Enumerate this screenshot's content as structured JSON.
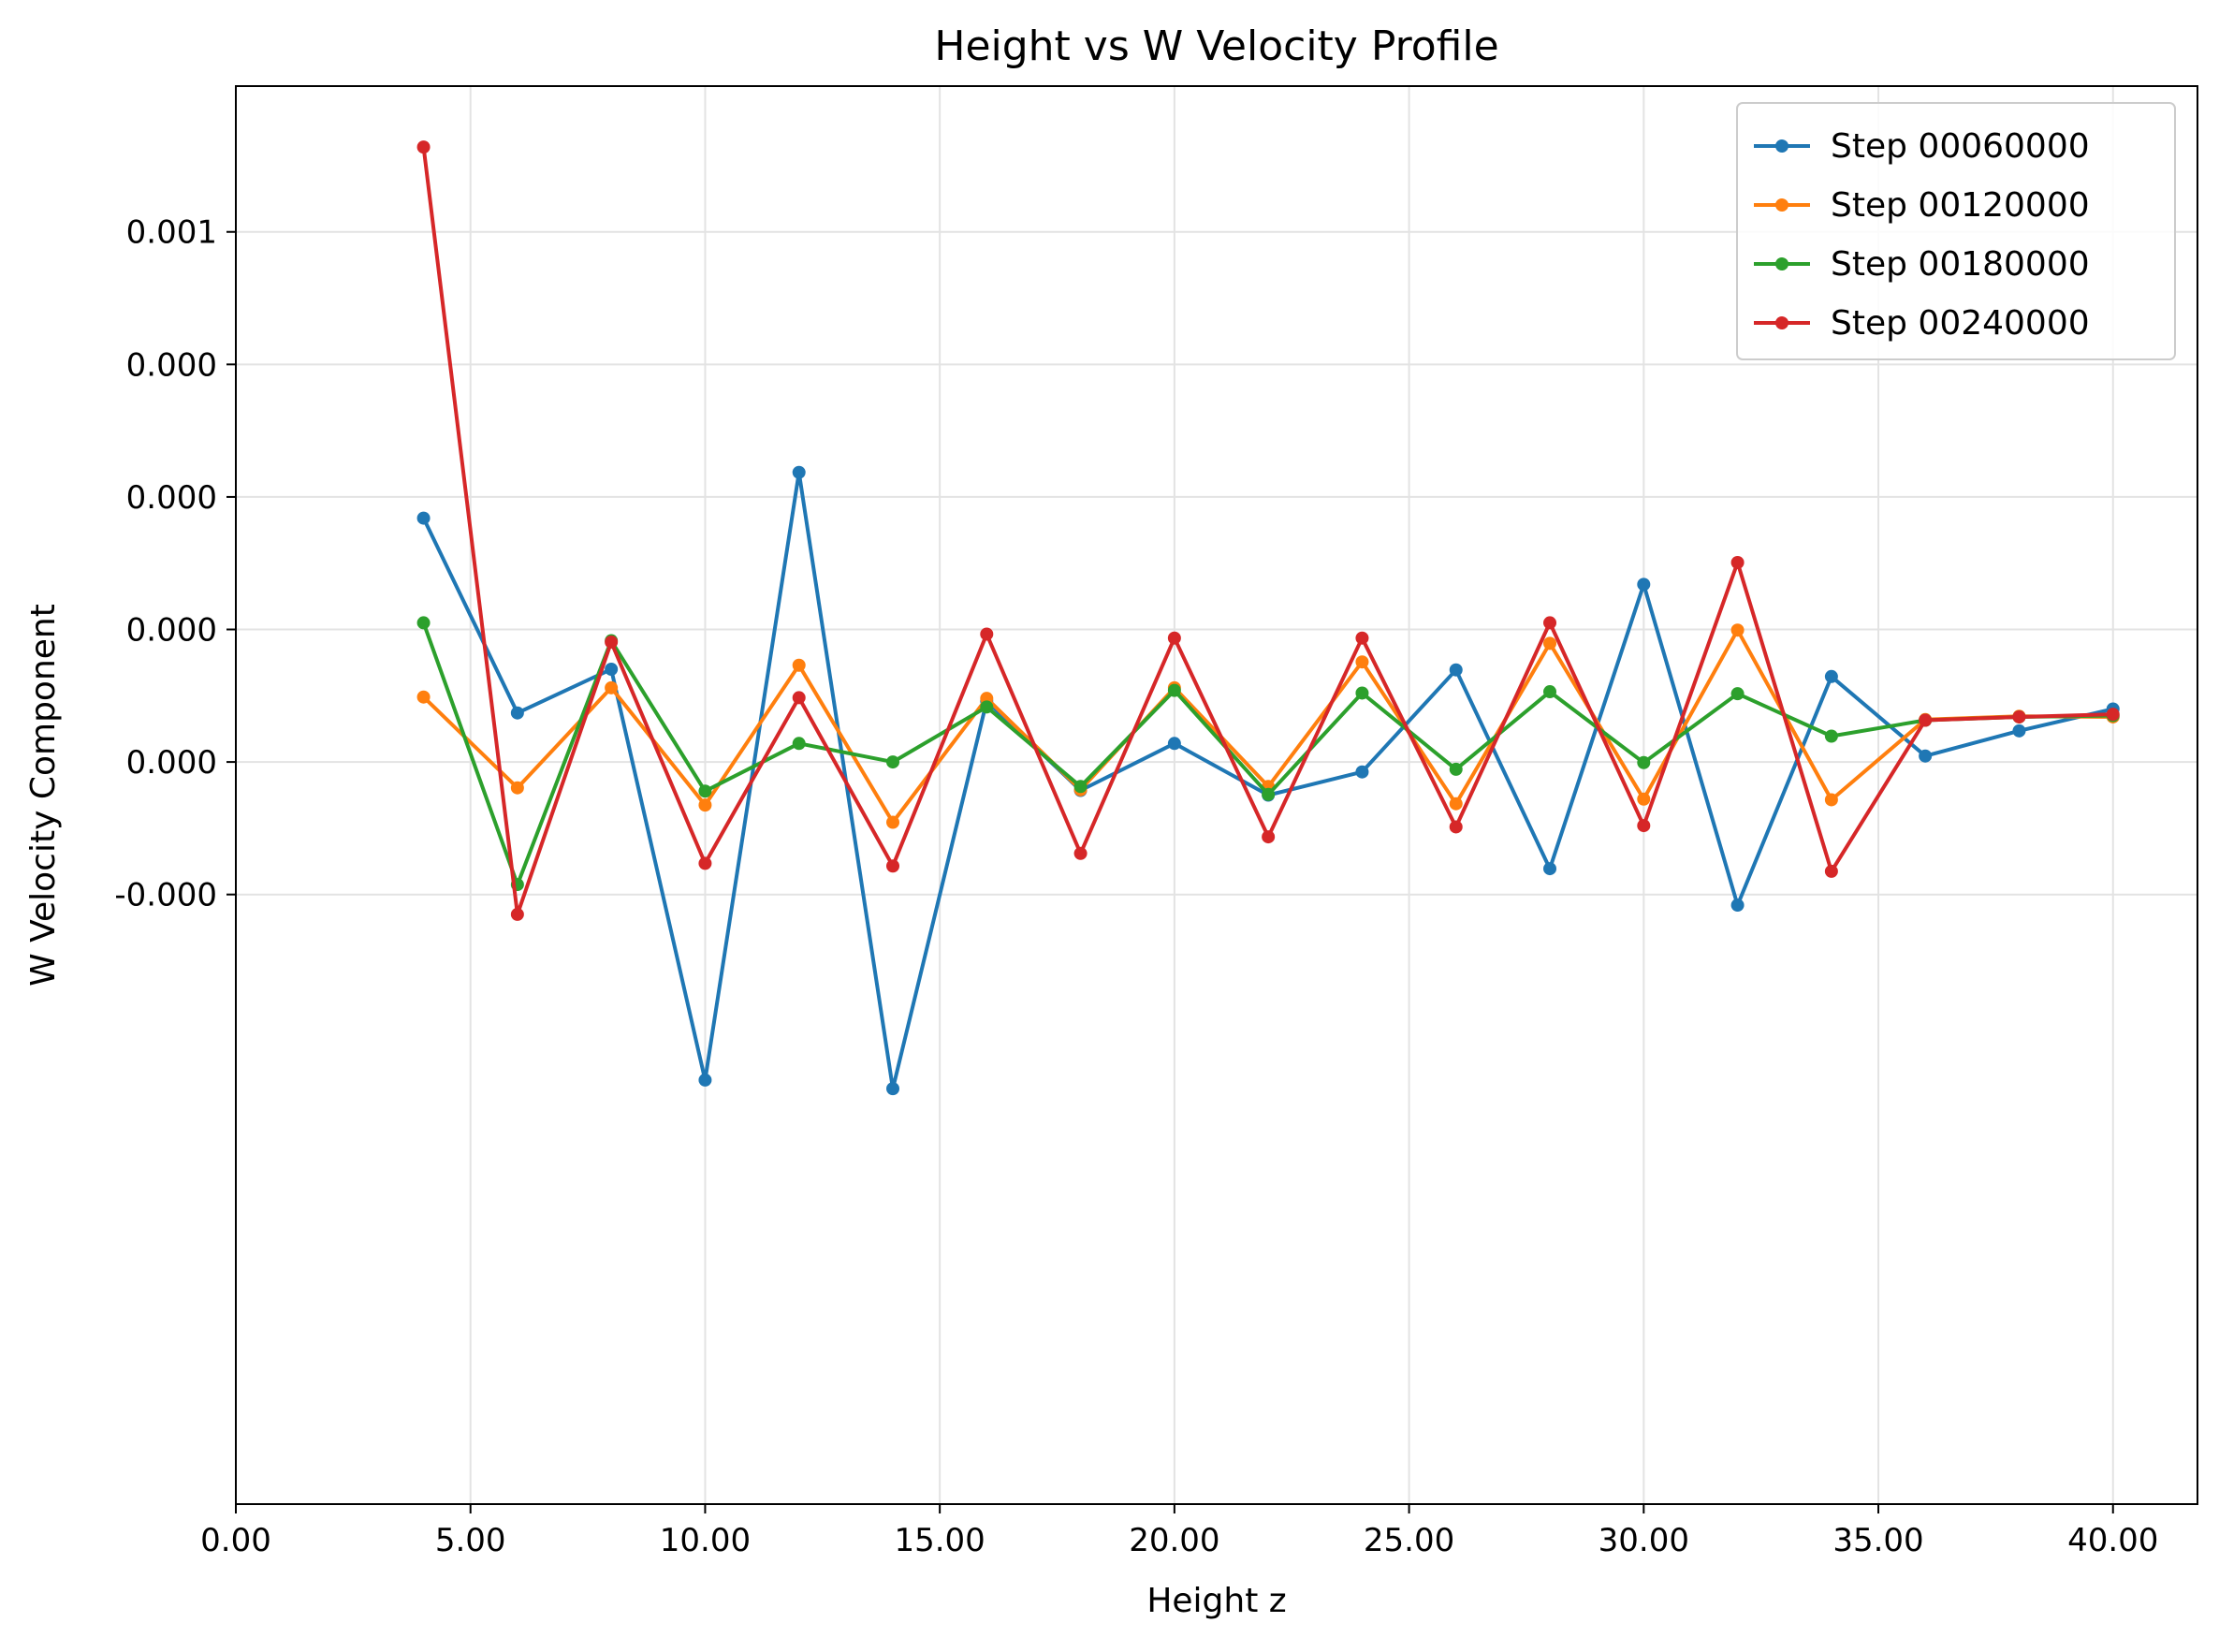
{
  "chart_data": {
    "type": "line",
    "title": "Height vs W Velocity Profile",
    "xlabel": "Height z",
    "ylabel": "W Velocity Component",
    "xlim": [
      0,
      41.8
    ],
    "ylim": [
      -0.00092,
      0.00122
    ],
    "grid": true,
    "legend_position": "top-right",
    "x_ticks": [
      {
        "value": 0,
        "label": "0.00"
      },
      {
        "value": 5,
        "label": "5.00"
      },
      {
        "value": 10,
        "label": "10.00"
      },
      {
        "value": 15,
        "label": "15.00"
      },
      {
        "value": 20,
        "label": "20.00"
      },
      {
        "value": 25,
        "label": "25.00"
      },
      {
        "value": 30,
        "label": "30.00"
      },
      {
        "value": 35,
        "label": "35.00"
      },
      {
        "value": 40,
        "label": "40.00"
      }
    ],
    "y_ticks": [
      {
        "value": 0.001,
        "label": "0.001"
      },
      {
        "value": 0.0008,
        "label": "0.000"
      },
      {
        "value": 0.0006,
        "label": "0.000"
      },
      {
        "value": 0.0004,
        "label": "0.000"
      },
      {
        "value": 0.0002,
        "label": "0.000"
      },
      {
        "value": 0.0,
        "label": "-0.000"
      }
    ],
    "x": [
      4,
      6,
      8,
      10,
      12,
      14,
      16,
      18,
      20,
      22,
      24,
      26,
      28,
      30,
      32,
      34,
      36,
      38,
      40
    ],
    "series": [
      {
        "name": "Step 00060000",
        "color": "#1f77b4",
        "values": [
          0.000568,
          0.000274,
          0.00034,
          -0.00028,
          0.000637,
          -0.000293,
          0.000292,
          0.000157,
          0.000228,
          0.00015,
          0.000185,
          0.000339,
          3.9e-05,
          0.000468,
          -1.6e-05,
          0.000329,
          0.000209,
          0.000247,
          0.00028
        ]
      },
      {
        "name": "Step 00120000",
        "color": "#ff7f0e",
        "values": [
          0.000298,
          0.000161,
          0.000312,
          0.000135,
          0.000346,
          0.000109,
          0.000296,
          0.000158,
          0.000312,
          0.000163,
          0.000351,
          0.000137,
          0.000379,
          0.000144,
          0.000399,
          0.000143,
          0.000264,
          0.000269,
          0.000268
        ]
      },
      {
        "name": "Step 00180000",
        "color": "#2ca02c",
        "values": [
          0.00041,
          1.5e-05,
          0.000383,
          0.000156,
          0.000228,
          0.0002,
          0.000283,
          0.000163,
          0.000308,
          0.000151,
          0.000304,
          0.000189,
          0.000306,
          0.000199,
          0.000303,
          0.000239,
          0.000263,
          0.000268,
          0.00027
        ]
      },
      {
        "name": "Step 00240000",
        "color": "#d62728",
        "values": [
          0.001128,
          -3e-05,
          0.000381,
          4.7e-05,
          0.000297,
          4.3e-05,
          0.000393,
          6.2e-05,
          0.000387,
          8.7e-05,
          0.000387,
          0.000102,
          0.00041,
          0.000104,
          0.000501,
          3.5e-05,
          0.000263,
          0.000268,
          0.000272
        ]
      }
    ]
  }
}
